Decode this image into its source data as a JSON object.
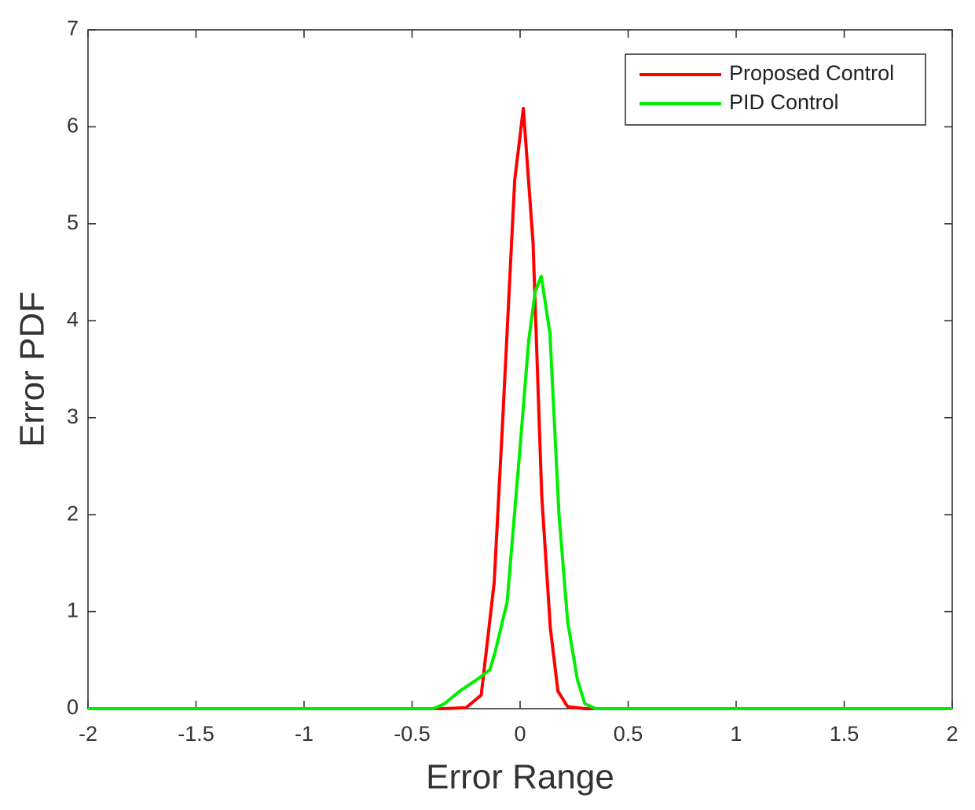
{
  "chart_data": {
    "type": "line",
    "xlabel": "Error Range",
    "ylabel": "Error PDF",
    "xlim": [
      -2,
      2
    ],
    "ylim": [
      0,
      7
    ],
    "xticks": [
      -2,
      -1.5,
      -1,
      -0.5,
      0,
      0.5,
      1,
      1.5,
      2
    ],
    "yticks": [
      0,
      1,
      2,
      3,
      4,
      5,
      6,
      7
    ],
    "grid": false,
    "legend": "upper right",
    "series": [
      {
        "name": "Proposed Control",
        "color": "#ff0000",
        "x": [
          -2,
          -0.35,
          -0.25,
          -0.18,
          -0.12,
          -0.08,
          -0.025,
          0.015,
          0.06,
          0.1,
          0.14,
          0.175,
          0.22,
          0.3,
          2
        ],
        "values": [
          0,
          0,
          0.01,
          0.14,
          1.3,
          3.0,
          5.45,
          6.19,
          4.8,
          2.2,
          0.83,
          0.18,
          0.02,
          0,
          0
        ]
      },
      {
        "name": "PID Control",
        "color": "#00ee00",
        "x": [
          -2,
          -0.4,
          -0.35,
          -0.28,
          -0.2,
          -0.14,
          -0.116,
          -0.06,
          0,
          0.04,
          0.07,
          0.098,
          0.138,
          0.18,
          0.22,
          0.265,
          0.3,
          0.35,
          2
        ],
        "values": [
          0,
          0,
          0.05,
          0.18,
          0.3,
          0.4,
          0.58,
          1.1,
          2.7,
          3.8,
          4.3,
          4.46,
          3.87,
          2.0,
          0.9,
          0.3,
          0.05,
          0,
          0
        ]
      }
    ]
  }
}
